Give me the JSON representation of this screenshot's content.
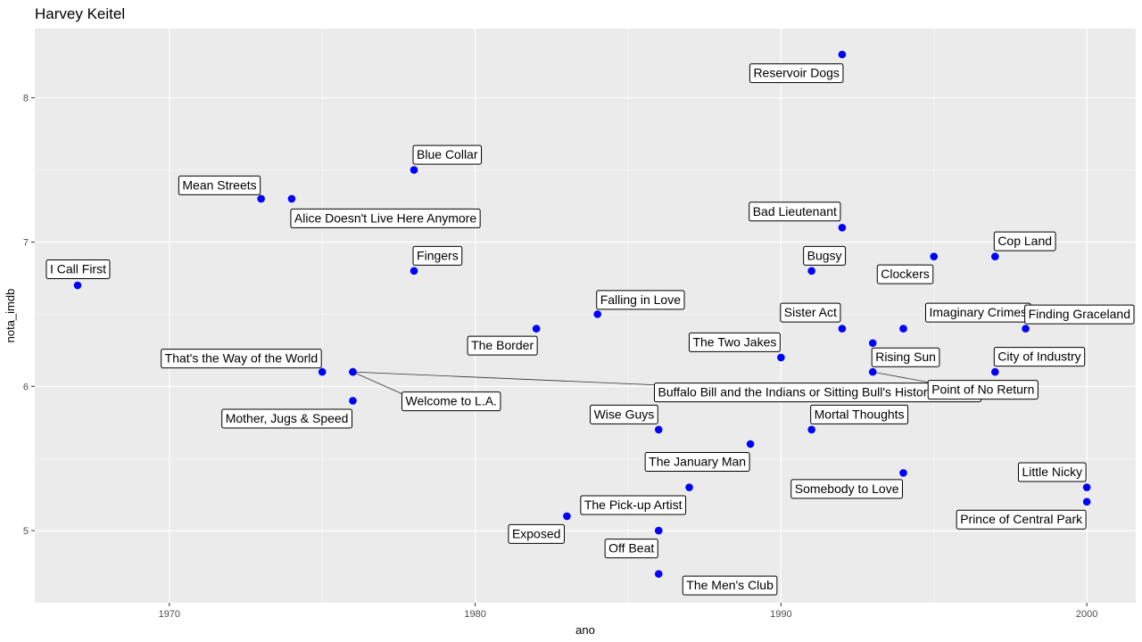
{
  "chart_data": {
    "type": "scatter",
    "title": "Harvey Keitel",
    "xlabel": "ano",
    "ylabel": "nota_imdb",
    "xlim": [
      1965.6,
      2001.6
    ],
    "ylim": [
      4.5,
      8.48
    ],
    "x_ticks": [
      1970,
      1980,
      1990,
      2000
    ],
    "y_ticks": [
      5,
      6,
      7,
      8
    ],
    "grid": true,
    "point_color": "#0000ff",
    "panel_color": "#ebebeb",
    "points": [
      {
        "x": 1967,
        "y": 6.7,
        "label": "I Call First"
      },
      {
        "x": 1973,
        "y": 7.3,
        "label": "Mean Streets"
      },
      {
        "x": 1974,
        "y": 7.3,
        "label": "Alice Doesn't Live Here Anymore"
      },
      {
        "x": 1975,
        "y": 6.1,
        "label": "That's the Way of the World"
      },
      {
        "x": 1976,
        "y": 6.1,
        "label": "Welcome to L.A."
      },
      {
        "x": 1976,
        "y": 6.1,
        "label": "Buffalo Bill and the Indians or Sitting Bull's History Lesson"
      },
      {
        "x": 1976,
        "y": 5.9,
        "label": "Mother, Jugs & Speed"
      },
      {
        "x": 1978,
        "y": 7.5,
        "label": "Blue Collar"
      },
      {
        "x": 1978,
        "y": 6.8,
        "label": "Fingers"
      },
      {
        "x": 1982,
        "y": 6.4,
        "label": "The Border"
      },
      {
        "x": 1983,
        "y": 5.1,
        "label": "Exposed"
      },
      {
        "x": 1984,
        "y": 6.5,
        "label": "Falling in Love"
      },
      {
        "x": 1986,
        "y": 5.7,
        "label": "Wise Guys"
      },
      {
        "x": 1986,
        "y": 5.0,
        "label": "Off Beat"
      },
      {
        "x": 1986,
        "y": 4.7,
        "label": "The Men's Club"
      },
      {
        "x": 1987,
        "y": 5.3,
        "label": "The Pick-up Artist"
      },
      {
        "x": 1989,
        "y": 5.6,
        "label": "The January Man"
      },
      {
        "x": 1990,
        "y": 6.2,
        "label": "The Two Jakes"
      },
      {
        "x": 1991,
        "y": 6.8,
        "label": "Bugsy"
      },
      {
        "x": 1991,
        "y": 5.7,
        "label": "Mortal Thoughts"
      },
      {
        "x": 1992,
        "y": 8.3,
        "label": "Reservoir Dogs"
      },
      {
        "x": 1992,
        "y": 7.1,
        "label": "Bad Lieutenant"
      },
      {
        "x": 1992,
        "y": 6.4,
        "label": "Sister Act"
      },
      {
        "x": 1993,
        "y": 6.3,
        "label": "Rising Sun"
      },
      {
        "x": 1993,
        "y": 6.1,
        "label": "Point of No Return"
      },
      {
        "x": 1994,
        "y": 6.4,
        "label": "Imaginary Crimes"
      },
      {
        "x": 1994,
        "y": 5.4,
        "label": "Somebody to Love"
      },
      {
        "x": 1995,
        "y": 6.9,
        "label": "Clockers"
      },
      {
        "x": 1997,
        "y": 6.9,
        "label": "Cop Land"
      },
      {
        "x": 1997,
        "y": 6.1,
        "label": "City of Industry"
      },
      {
        "x": 1998,
        "y": 6.4,
        "label": "Finding Graceland"
      },
      {
        "x": 2000,
        "y": 5.3,
        "label": "Little Nicky"
      },
      {
        "x": 2000,
        "y": 5.2,
        "label": "Prince of Central Park"
      }
    ]
  }
}
